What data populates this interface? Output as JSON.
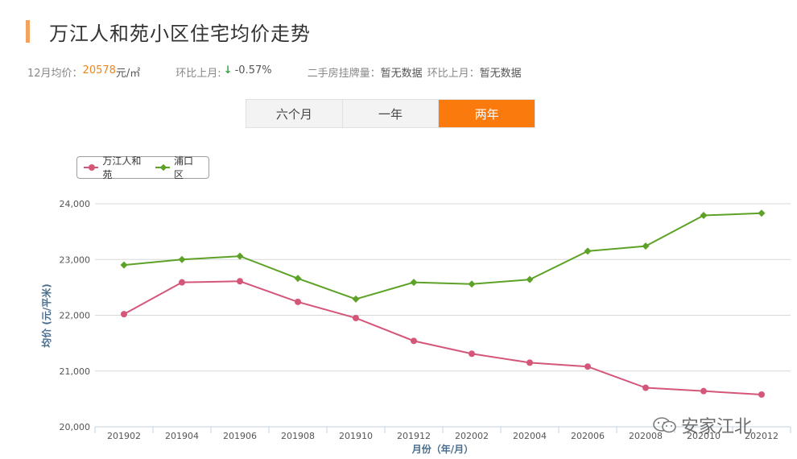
{
  "header": {
    "title": "万江人和苑小区住宅均价走势"
  },
  "stats": {
    "avg_label": "12月均价：",
    "avg_value": "20578",
    "avg_unit": "元/㎡",
    "mom_label": "环比上月:",
    "mom_arrow": "↓",
    "mom_value": "-0.57%",
    "listing_label": "二手房挂牌量：",
    "listing_value": "暂无数据",
    "listing_mom_label": "环比上月：",
    "listing_mom_value": "暂无数据"
  },
  "tabs": [
    {
      "label": "六个月",
      "active": false
    },
    {
      "label": "一年",
      "active": false
    },
    {
      "label": "两年",
      "active": true
    }
  ],
  "colors": {
    "accent": "#fa7a0e",
    "series_wanjiang": "#d4577a",
    "series_pukou": "#5da227",
    "axis_title": "#4a6d8c"
  },
  "watermark": {
    "text": "安家江北",
    "icon": "wechat-icon"
  },
  "chart_data": {
    "type": "line",
    "title": "",
    "xlabel": "月份（年/月）",
    "ylabel": "均价 (元/平米)",
    "ylim": [
      20000,
      24000
    ],
    "yticks": [
      20000,
      21000,
      22000,
      23000,
      24000
    ],
    "ytick_labels": [
      "20,000",
      "21,000",
      "22,000",
      "23,000",
      "24,000"
    ],
    "grid": true,
    "legend_position": "top-left",
    "categories": [
      "201902",
      "201904",
      "201906",
      "201908",
      "201910",
      "201912",
      "202002",
      "202004",
      "202006",
      "202008",
      "202010",
      "202012"
    ],
    "series": [
      {
        "name": "万江人和苑",
        "marker": "circle",
        "values": [
          22020,
          22590,
          22610,
          22240,
          21950,
          21540,
          21310,
          21150,
          21080,
          20700,
          20640,
          20578
        ]
      },
      {
        "name": "浦口区",
        "marker": "diamond",
        "values": [
          22900,
          23000,
          23060,
          22660,
          22290,
          22590,
          22560,
          22640,
          23150,
          23240,
          23790,
          23830
        ]
      }
    ]
  }
}
